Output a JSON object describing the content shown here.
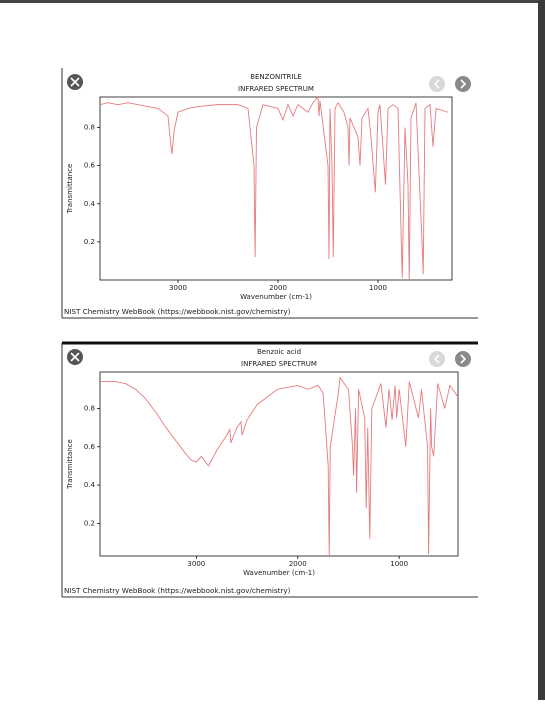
{
  "chart_data": [
    {
      "type": "line",
      "title": "BENZONITRILE",
      "subtitle": "INFRARED SPECTRUM",
      "xlabel": "Wavenumber (cm-1)",
      "ylabel": "Transmittance",
      "source": "NIST Chemistry WebBook (https://webbook.nist.gov/chemistry)",
      "color": "#e57b7d",
      "xlim": [
        3780,
        260
      ],
      "ylim": [
        0,
        0.96
      ],
      "xticks": [
        3000,
        2000,
        1000
      ],
      "yticks": [
        0.2,
        0.4,
        0.6,
        0.8
      ],
      "x": [
        3780,
        3700,
        3600,
        3500,
        3400,
        3300,
        3200,
        3100,
        3070,
        3060,
        3040,
        3000,
        2900,
        2800,
        2600,
        2400,
        2300,
        2240,
        2229,
        2215,
        2150,
        2000,
        1950,
        1900,
        1850,
        1800,
        1700,
        1650,
        1600,
        1590,
        1580,
        1500,
        1490,
        1480,
        1460,
        1447,
        1430,
        1400,
        1340,
        1300,
        1290,
        1280,
        1200,
        1180,
        1160,
        1100,
        1070,
        1027,
        1000,
        980,
        925,
        900,
        850,
        800,
        758,
        730,
        700,
        688,
        670,
        620,
        560,
        548,
        530,
        480,
        450,
        420,
        300
      ],
      "values": [
        0.92,
        0.93,
        0.92,
        0.93,
        0.92,
        0.91,
        0.9,
        0.86,
        0.7,
        0.66,
        0.78,
        0.88,
        0.9,
        0.91,
        0.92,
        0.92,
        0.9,
        0.6,
        0.12,
        0.8,
        0.92,
        0.9,
        0.84,
        0.92,
        0.86,
        0.92,
        0.88,
        0.93,
        0.96,
        0.86,
        0.94,
        0.6,
        0.11,
        0.9,
        0.6,
        0.12,
        0.9,
        0.93,
        0.88,
        0.8,
        0.6,
        0.85,
        0.75,
        0.6,
        0.85,
        0.9,
        0.75,
        0.46,
        0.88,
        0.92,
        0.5,
        0.9,
        0.92,
        0.9,
        0.01,
        0.8,
        0.5,
        0.0,
        0.85,
        0.93,
        0.2,
        0.03,
        0.9,
        0.92,
        0.7,
        0.9,
        0.88
      ]
    },
    {
      "type": "line",
      "title": "Benzoic acid",
      "subtitle": "INFRARED SPECTRUM",
      "xlabel": "Wavenumber (cm-1)",
      "ylabel": "Transmittance",
      "source": "NIST Chemistry WebBook (https://webbook.nist.gov/chemistry)",
      "color": "#e57b7d",
      "xlim": [
        3950,
        420
      ],
      "ylim": [
        0.03,
        0.99
      ],
      "xticks": [
        3000,
        2000,
        1000
      ],
      "yticks": [
        0.2,
        0.4,
        0.6,
        0.8
      ],
      "x": [
        3950,
        3800,
        3700,
        3600,
        3500,
        3400,
        3300,
        3200,
        3100,
        3050,
        3000,
        2950,
        2880,
        2800,
        2700,
        2670,
        2660,
        2600,
        2560,
        2550,
        2500,
        2400,
        2200,
        2000,
        1900,
        1800,
        1750,
        1700,
        1690,
        1680,
        1600,
        1583,
        1500,
        1460,
        1450,
        1430,
        1420,
        1400,
        1340,
        1325,
        1310,
        1290,
        1270,
        1180,
        1130,
        1100,
        1070,
        1040,
        1025,
        1000,
        935,
        900,
        810,
        780,
        720,
        710,
        690,
        680,
        660,
        620,
        550,
        500,
        420
      ],
      "values": [
        0.94,
        0.94,
        0.93,
        0.9,
        0.85,
        0.78,
        0.7,
        0.63,
        0.56,
        0.53,
        0.52,
        0.55,
        0.5,
        0.58,
        0.66,
        0.69,
        0.62,
        0.7,
        0.73,
        0.66,
        0.74,
        0.82,
        0.9,
        0.92,
        0.9,
        0.92,
        0.88,
        0.5,
        0.03,
        0.6,
        0.88,
        0.96,
        0.9,
        0.6,
        0.45,
        0.8,
        0.36,
        0.9,
        0.75,
        0.28,
        0.7,
        0.12,
        0.8,
        0.93,
        0.7,
        0.9,
        0.74,
        0.92,
        0.75,
        0.9,
        0.6,
        0.94,
        0.75,
        0.9,
        0.6,
        0.04,
        0.8,
        0.6,
        0.55,
        0.93,
        0.8,
        0.92,
        0.86
      ]
    }
  ]
}
